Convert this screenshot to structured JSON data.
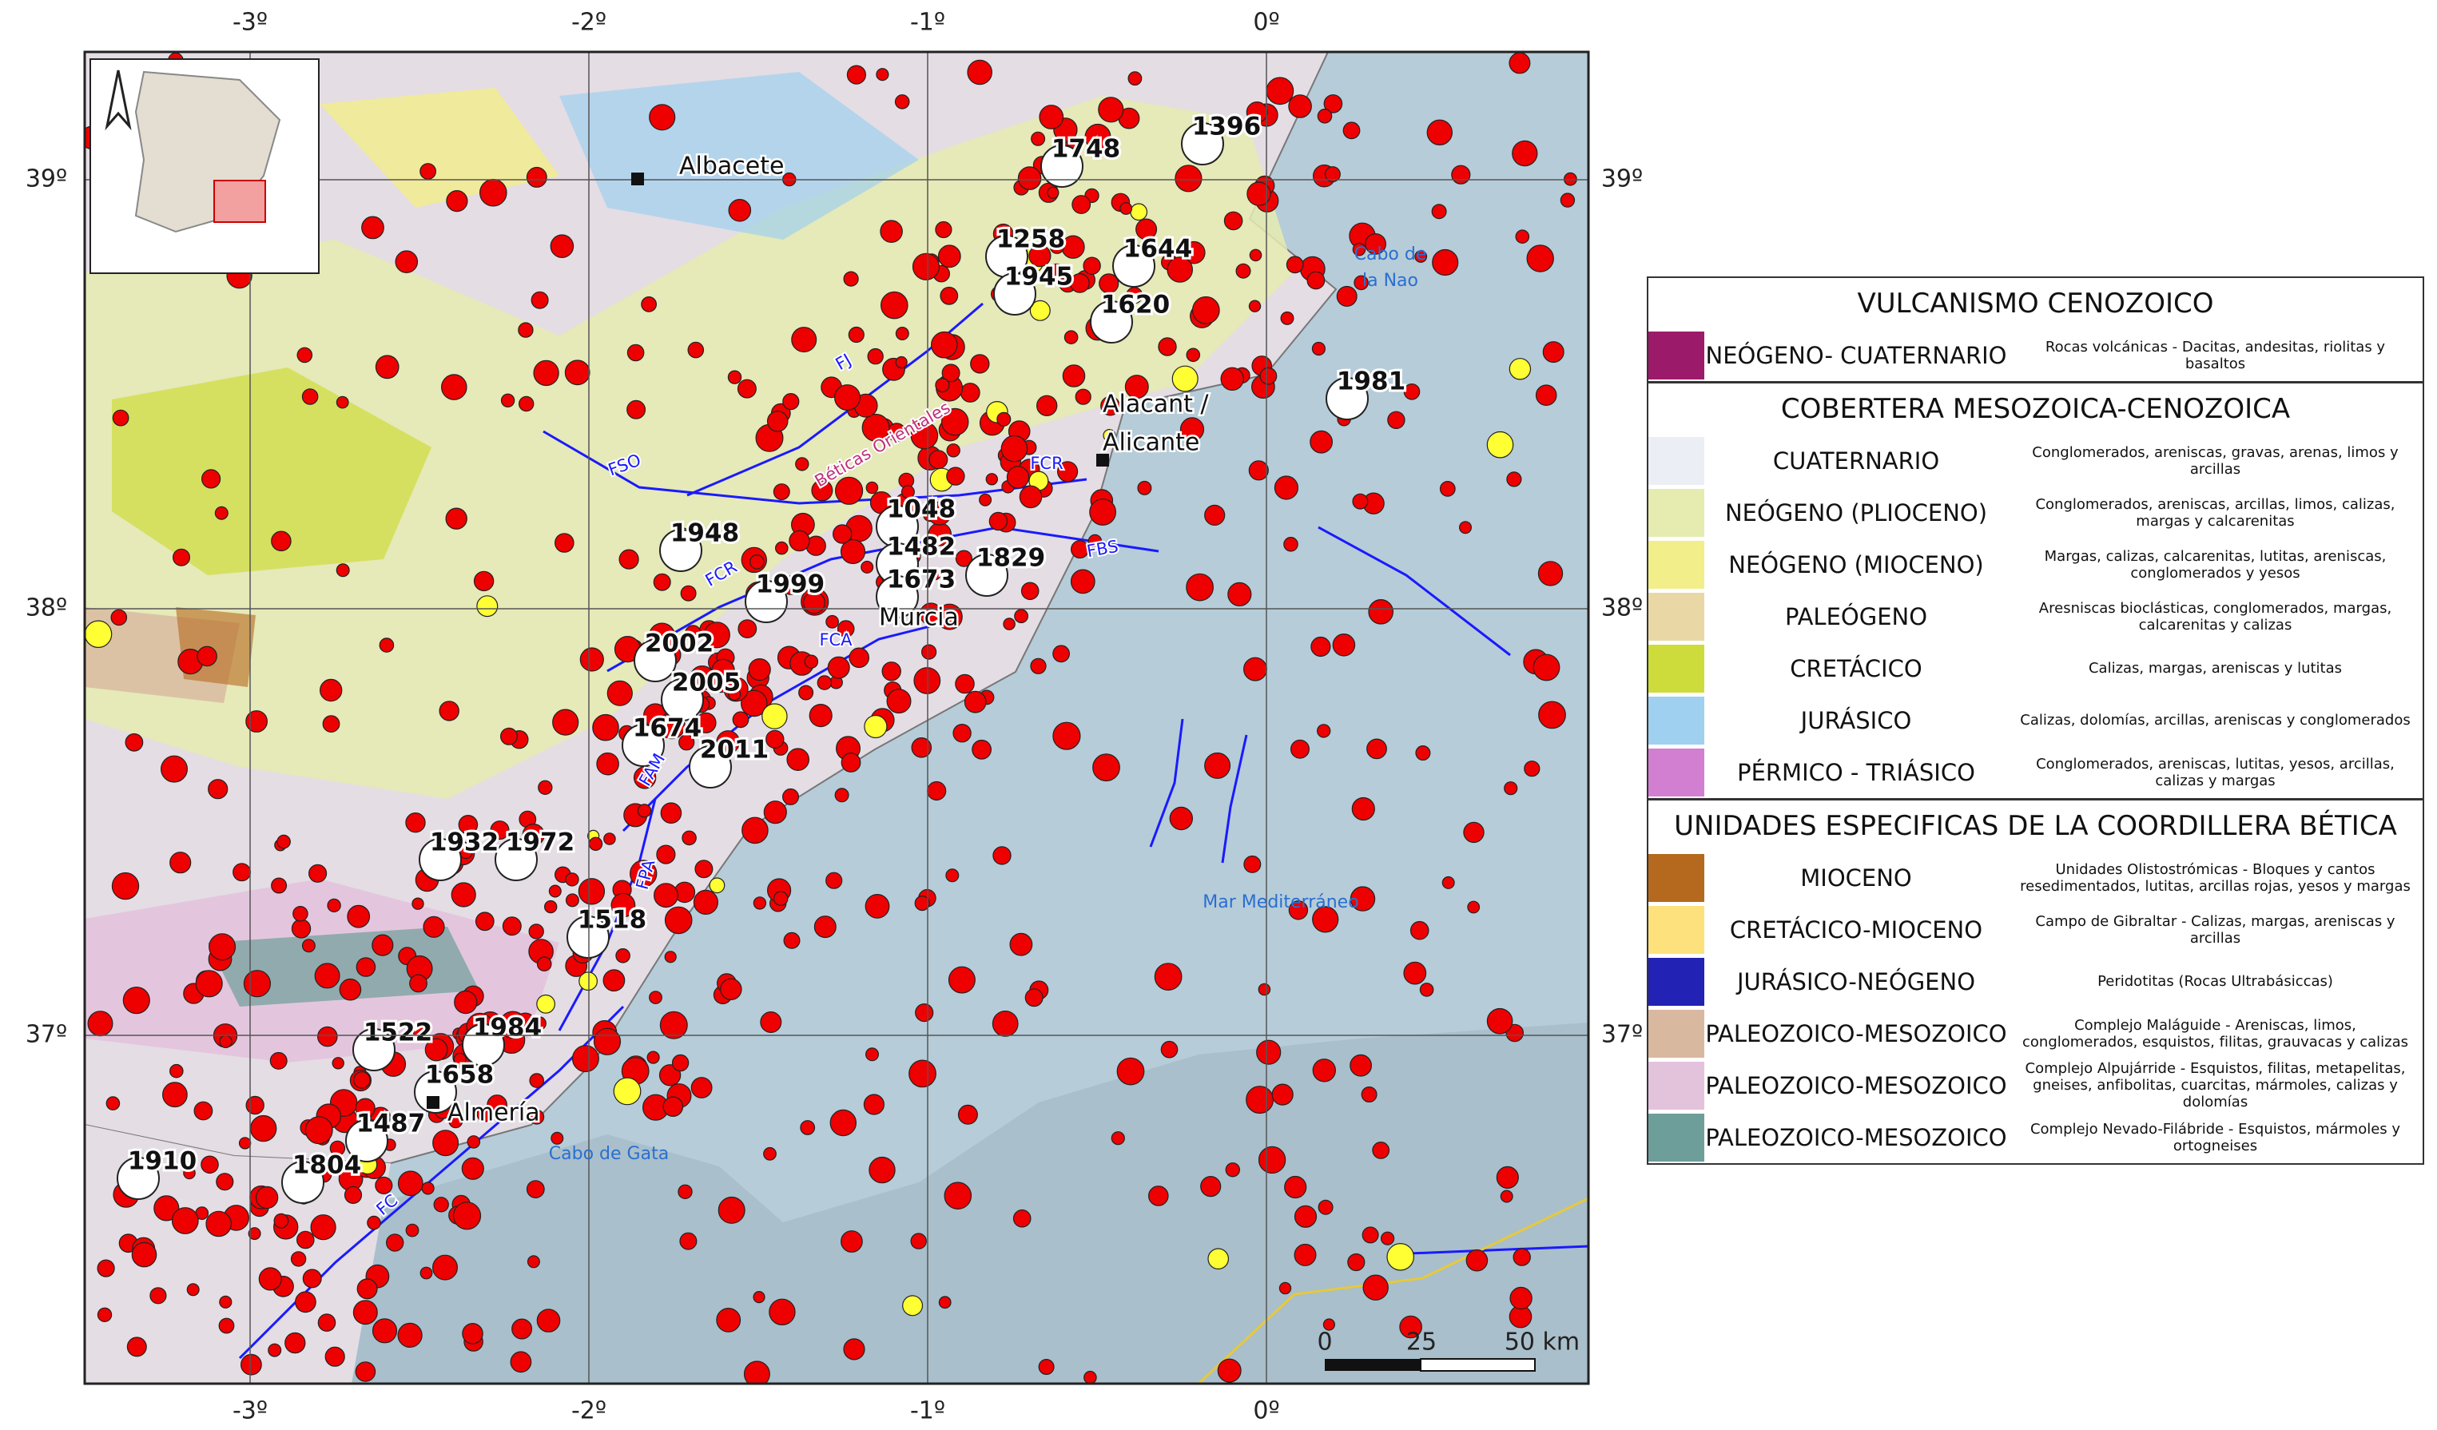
{
  "map": {
    "lon_ticks": [
      "-3º",
      "-2º",
      "-1º",
      "0º"
    ],
    "lat_ticks": [
      "39º",
      "38º",
      "37º"
    ],
    "places": [
      "Albacete",
      "Alacant /",
      "Alicante",
      "Murcia",
      "Almería"
    ],
    "sea_labels": [
      "Cabo de",
      "la Nao",
      "Cabo de Gata",
      "Mar Mediterráneo"
    ],
    "region_label": "Béticas Orientales",
    "faults": [
      "FJ",
      "FSO",
      "FCR",
      "FCR",
      "FBS",
      "FCA",
      "FAM",
      "FPA",
      "FC"
    ],
    "earthquakes": [
      "1396",
      "1748",
      "1258",
      "1644",
      "1945",
      "1620",
      "1981",
      "1048",
      "1482",
      "1829",
      "1948",
      "1999",
      "1673",
      "2002",
      "2005",
      "1674",
      "2011",
      "1932",
      "1972",
      "1518",
      "1522",
      "1984",
      "1658",
      "1487",
      "1910",
      "1804"
    ],
    "scale": [
      "0",
      "25",
      "50 km"
    ]
  },
  "legend": {
    "sections": [
      {
        "title": "VULCANISMO CENOZOICO",
        "rows": [
          {
            "name": "NEÓGENO- CUATERNARIO",
            "description": "Rocas volcánicas - Dacitas, andesitas, riolitas y basaltos",
            "color": "#9c1a6a"
          }
        ]
      },
      {
        "title": "COBERTERA MESOZOICA-CENOZOICA",
        "rows": [
          {
            "name": "CUATERNARIO",
            "description": "Conglomerados, areniscas, gravas, arenas, limos y arcillas",
            "color": "#eceef6"
          },
          {
            "name": "NEÓGENO (PLIOCENO)",
            "description": "Conglomerados, areniscas, arcillas, limos, calizas, margas y calcarenitas",
            "color": "#e6ebb0"
          },
          {
            "name": "NEÓGENO (MIOCENO)",
            "description": "Margas, calizas, calcarenitas, lutitas, areniscas, conglomerados y yesos",
            "color": "#f2ee8a"
          },
          {
            "name": "PALEÓGENO",
            "description": "Aresniscas bioclásticas, conglomerados, margas, calcarenitas y calizas",
            "color": "#e9d8a6"
          },
          {
            "name": "CRETÁCICO",
            "description": "Calizas, margas, areniscas y lutitas",
            "color": "#cddc3a"
          },
          {
            "name": "JURÁSICO",
            "description": "Calizas, dolomías, arcillas, areniscas y conglomerados",
            "color": "#9fd0ef"
          },
          {
            "name": "PÉRMICO - TRIÁSICO",
            "description": "Conglomerados, areniscas, lutitas, yesos, arcillas, calizas y margas",
            "color": "#d27fd2"
          }
        ]
      },
      {
        "title": "UNIDADES ESPECIFICAS DE LA COORDILLERA BÉTICA",
        "rows": [
          {
            "name": "MIOCENO",
            "description": "Unidades Olistostrómicas - Bloques y cantos resedimentados, lutitas, arcillas rojas, yesos y  margas",
            "color": "#b5691e"
          },
          {
            "name": "CRETÁCICO-MIOCENO",
            "description": "Campo de Gibraltar - Calizas, margas, areniscas y arcillas",
            "color": "#fce17c"
          },
          {
            "name": "JURÁSICO-NEÓGENO",
            "description": "Peridotitas (Rocas Ultrabásiccas)",
            "color": "#2222b4"
          },
          {
            "name": "PALEOZOICO-MESOZOICO",
            "description": "Complejo Maláguide - Areniscas, limos, conglomerados, esquistos, filitas, grauvacas y calizas",
            "color": "#d9b8a0"
          },
          {
            "name": "PALEOZOICO-MESOZOICO",
            "description": "Complejo Alpujárride - Esquistos, filitas, metapelitas, gneises, anfibolitas, cuarcitas, mármoles, calizas y dolomías",
            "color": "#e3c2dc"
          },
          {
            "name": "PALEOZOICO-MESOZOICO",
            "description": "Complejo Nevado-Filábride - Esquistos, mármoles y ortogneises",
            "color": "#6e9e9a"
          }
        ]
      }
    ]
  }
}
